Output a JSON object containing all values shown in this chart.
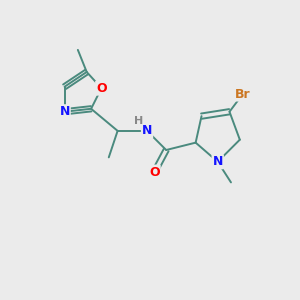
{
  "background_color": "#EBEBEB",
  "bond_color": "#4a8a7e",
  "atom_colors": {
    "N": "#1414FF",
    "O": "#FF0000",
    "Br": "#CC7722",
    "C": "#4a8a7e",
    "H": "#888888"
  }
}
